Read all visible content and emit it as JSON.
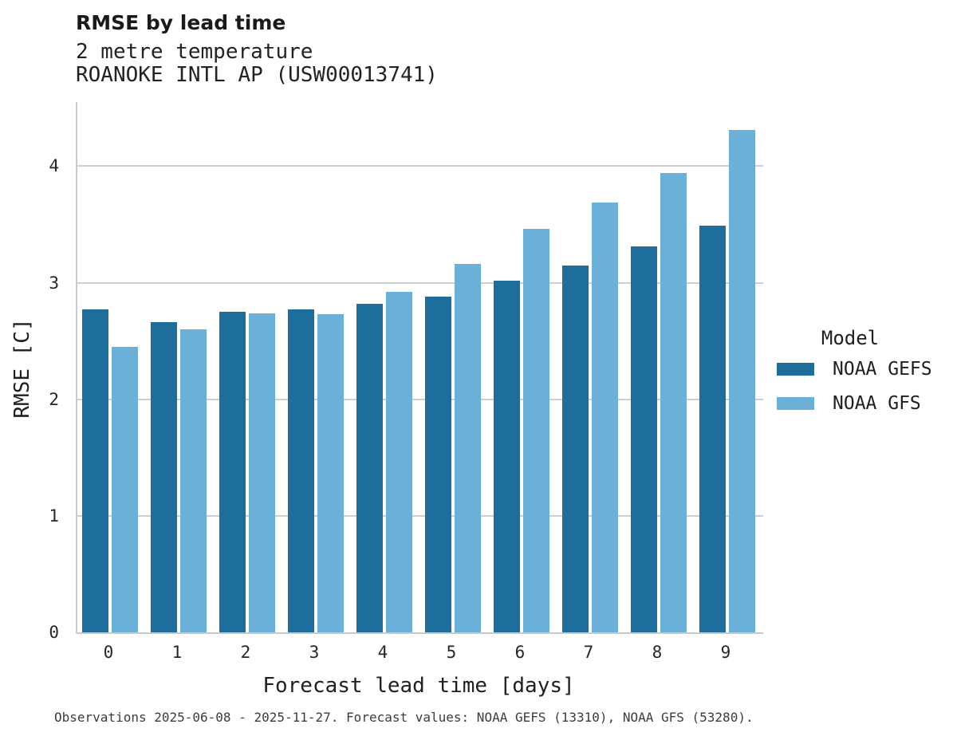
{
  "header": {
    "title": "RMSE by lead time",
    "subtitle_line1": "2 metre temperature",
    "subtitle_line2": "ROANOKE INTL AP (USW00013741)"
  },
  "chart_data": {
    "type": "bar",
    "title": "RMSE by lead time",
    "subtitle": [
      "2 metre temperature",
      "ROANOKE INTL AP (USW00013741)"
    ],
    "xlabel": "Forecast lead time [days]",
    "ylabel": "RMSE [C]",
    "categories": [
      "0",
      "1",
      "2",
      "3",
      "4",
      "5",
      "6",
      "7",
      "8",
      "9"
    ],
    "series": [
      {
        "name": "NOAA GEFS",
        "color": "#1d6e9c",
        "values": [
          2.77,
          2.66,
          2.75,
          2.77,
          2.82,
          2.88,
          3.02,
          3.15,
          3.31,
          3.49
        ]
      },
      {
        "name": "NOAA GFS",
        "color": "#6bb0d9",
        "values": [
          2.45,
          2.6,
          2.74,
          2.73,
          2.92,
          3.16,
          3.46,
          3.69,
          3.94,
          4.31
        ]
      }
    ],
    "ylim": [
      0,
      4.55
    ],
    "yticks": [
      0,
      1,
      2,
      3,
      4
    ],
    "grid": true,
    "grid_color": "#cfcfcf",
    "axis_color": "#c9c9c9",
    "legend_position": "right",
    "legend_title": "Model"
  },
  "legend": {
    "title": "Model",
    "items": [
      {
        "label": "NOAA GEFS",
        "color": "#1d6e9c"
      },
      {
        "label": "NOAA GFS",
        "color": "#6bb0d9"
      }
    ]
  },
  "caption": "Observations 2025-06-08 - 2025-11-27. Forecast values: NOAA GEFS (13310), NOAA GFS (53280)."
}
